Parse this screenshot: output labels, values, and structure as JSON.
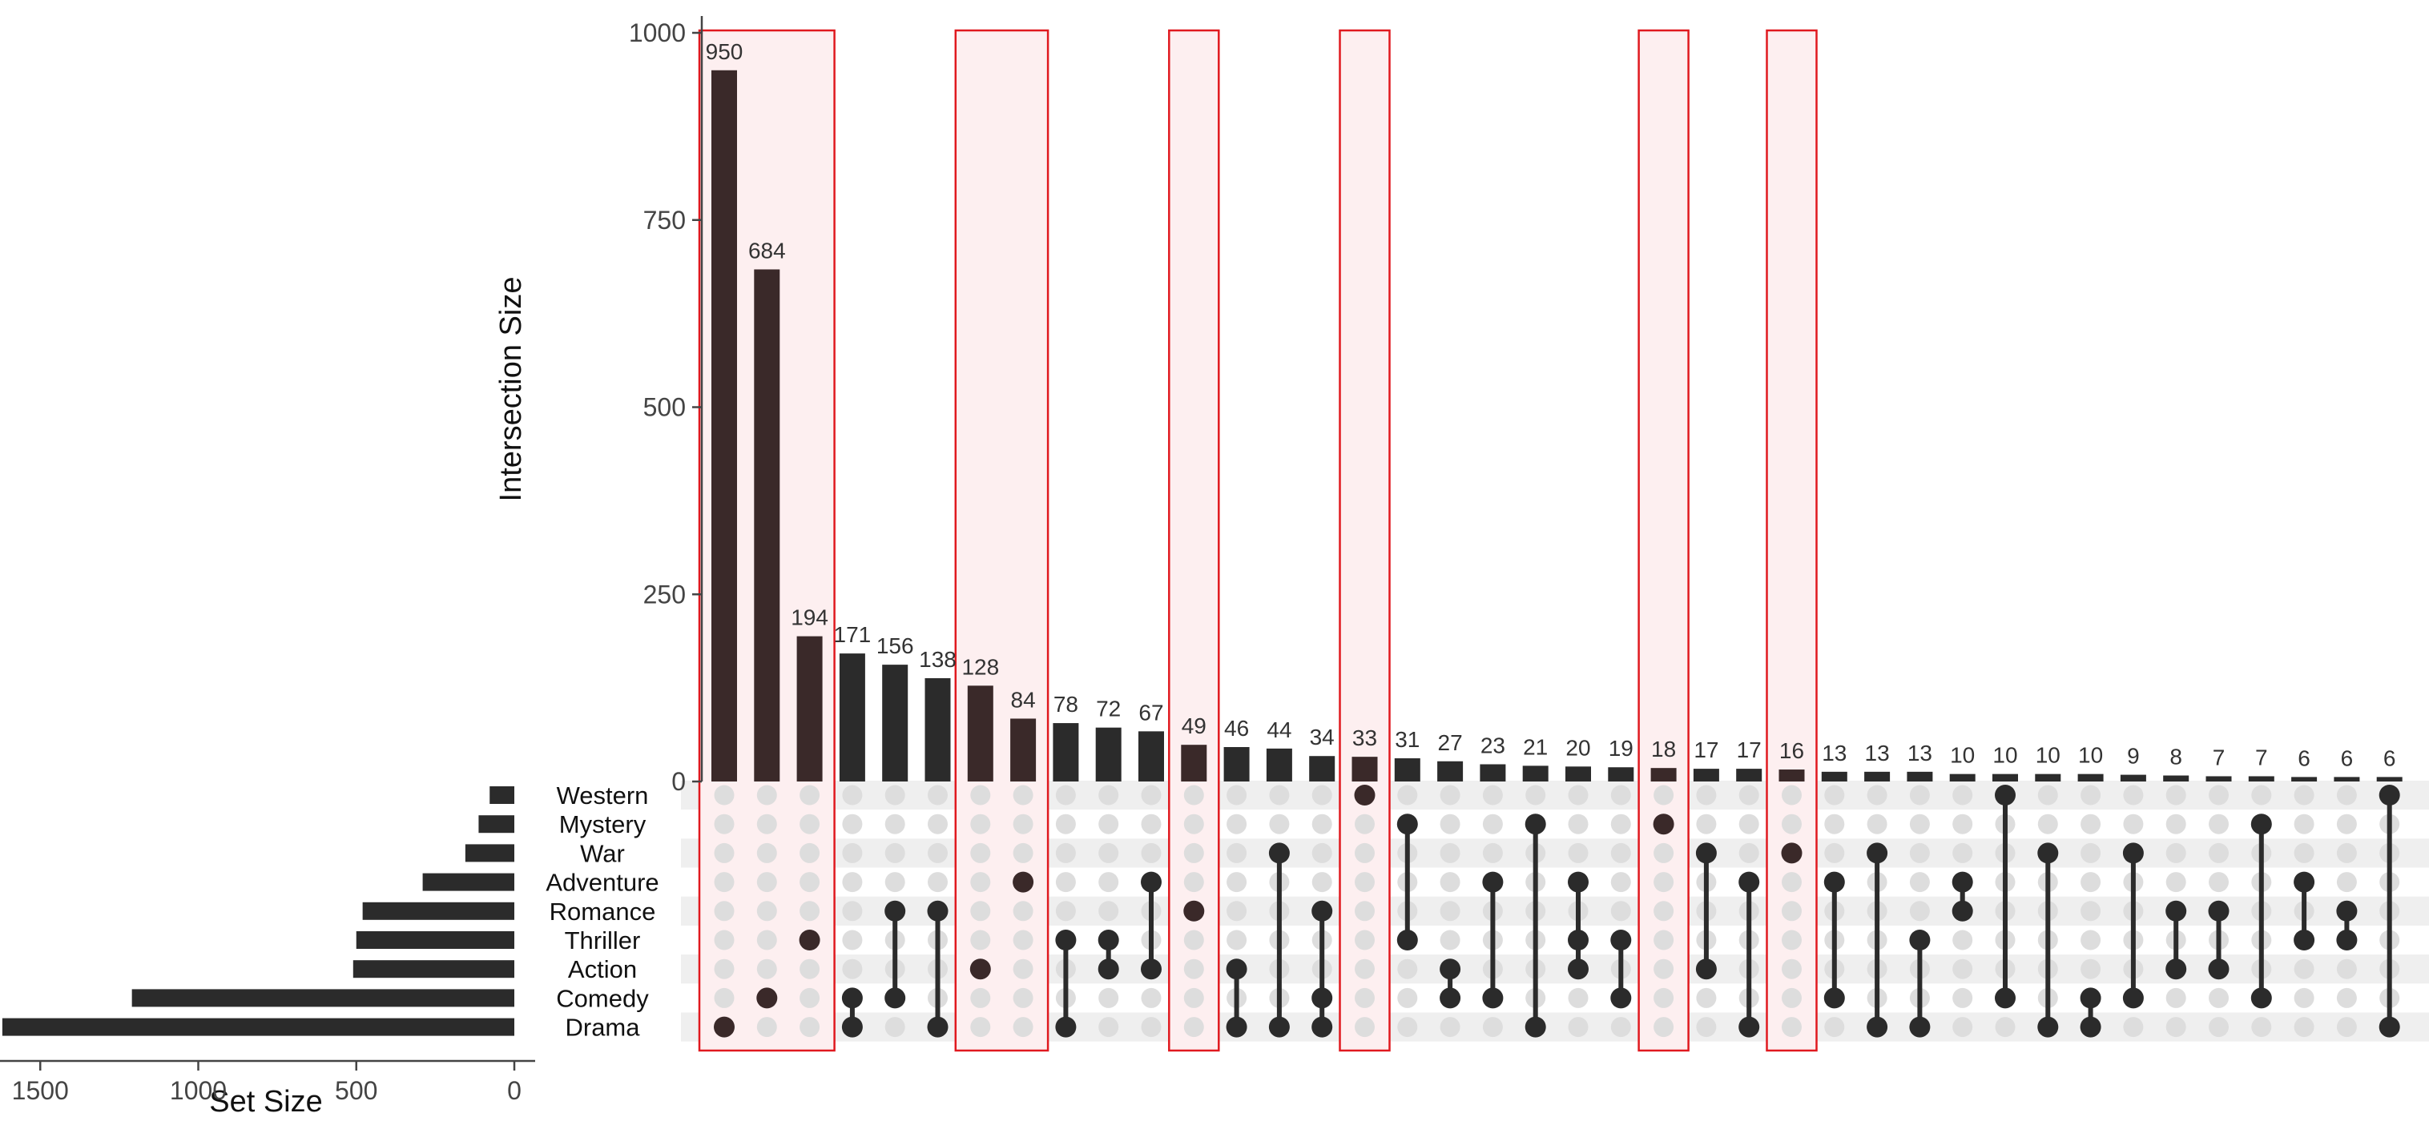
{
  "chart_data": {
    "type": "upset",
    "ylabel": "Intersection Size",
    "set_size_label": "Set Size",
    "ylim": [
      0,
      1000
    ],
    "yticks": [
      0,
      250,
      500,
      750,
      1000
    ],
    "set_size_lim": [
      0,
      1650
    ],
    "set_size_ticks": [
      1500,
      1000,
      500,
      0
    ],
    "sets": [
      "Western",
      "Mystery",
      "War",
      "Adventure",
      "Romance",
      "Thriller",
      "Action",
      "Comedy",
      "Drama"
    ],
    "set_sizes": [
      78,
      113,
      155,
      290,
      480,
      500,
      510,
      1210,
      1620
    ],
    "intersections": [
      {
        "sets": [
          "Drama"
        ],
        "size": 950
      },
      {
        "sets": [
          "Comedy"
        ],
        "size": 684
      },
      {
        "sets": [
          "Thriller"
        ],
        "size": 194
      },
      {
        "sets": [
          "Comedy",
          "Drama"
        ],
        "size": 171
      },
      {
        "sets": [
          "Romance",
          "Comedy"
        ],
        "size": 156
      },
      {
        "sets": [
          "Romance",
          "Drama"
        ],
        "size": 138
      },
      {
        "sets": [
          "Action"
        ],
        "size": 128
      },
      {
        "sets": [
          "Adventure"
        ],
        "size": 84
      },
      {
        "sets": [
          "Thriller",
          "Drama"
        ],
        "size": 78
      },
      {
        "sets": [
          "Thriller",
          "Action"
        ],
        "size": 72
      },
      {
        "sets": [
          "Adventure",
          "Action"
        ],
        "size": 67
      },
      {
        "sets": [
          "Romance"
        ],
        "size": 49
      },
      {
        "sets": [
          "Action",
          "Drama"
        ],
        "size": 46
      },
      {
        "sets": [
          "War",
          "Drama"
        ],
        "size": 44
      },
      {
        "sets": [
          "Romance",
          "Comedy",
          "Drama"
        ],
        "size": 34
      },
      {
        "sets": [
          "Western"
        ],
        "size": 33
      },
      {
        "sets": [
          "Mystery",
          "Thriller"
        ],
        "size": 31
      },
      {
        "sets": [
          "Action",
          "Comedy"
        ],
        "size": 27
      },
      {
        "sets": [
          "Adventure",
          "Comedy"
        ],
        "size": 23
      },
      {
        "sets": [
          "Mystery",
          "Drama"
        ],
        "size": 21
      },
      {
        "sets": [
          "Adventure",
          "Thriller",
          "Action"
        ],
        "size": 20
      },
      {
        "sets": [
          "Thriller",
          "Comedy"
        ],
        "size": 19
      },
      {
        "sets": [
          "Mystery"
        ],
        "size": 18
      },
      {
        "sets": [
          "War",
          "Action"
        ],
        "size": 17
      },
      {
        "sets": [
          "Adventure",
          "Drama"
        ],
        "size": 17
      },
      {
        "sets": [
          "War"
        ],
        "size": 16
      },
      {
        "sets": [
          "Adventure",
          "Comedy"
        ],
        "size": 13
      },
      {
        "sets": [
          "War",
          "Drama"
        ],
        "size": 13
      },
      {
        "sets": [
          "Thriller",
          "Drama"
        ],
        "size": 13
      },
      {
        "sets": [
          "Adventure",
          "Romance"
        ],
        "size": 10
      },
      {
        "sets": [
          "Western",
          "Comedy"
        ],
        "size": 10
      },
      {
        "sets": [
          "War",
          "Drama"
        ],
        "size": 10
      },
      {
        "sets": [
          "Comedy",
          "Drama"
        ],
        "size": 10
      },
      {
        "sets": [
          "War",
          "Comedy"
        ],
        "size": 9
      },
      {
        "sets": [
          "Romance",
          "Action"
        ],
        "size": 8
      },
      {
        "sets": [
          "Romance",
          "Action"
        ],
        "size": 7
      },
      {
        "sets": [
          "Mystery",
          "Comedy"
        ],
        "size": 7
      },
      {
        "sets": [
          "Adventure",
          "Thriller"
        ],
        "size": 6
      },
      {
        "sets": [
          "Romance",
          "Thriller"
        ],
        "size": 6
      },
      {
        "sets": [
          "Western",
          "Drama"
        ],
        "size": 6
      }
    ],
    "highlighted_groups": [
      [
        0,
        2
      ],
      [
        6,
        7
      ],
      [
        11,
        11
      ],
      [
        15,
        15
      ],
      [
        22,
        22
      ],
      [
        25,
        25
      ]
    ],
    "colors": {
      "bar": "#2b2b2b",
      "highlight_bar": "#3a2929",
      "highlight_border": "#e0191f",
      "highlight_fill": "#fdeff0",
      "dot_inactive": "#dddddd",
      "stripe": "#efefef",
      "axis": "#444444"
    }
  }
}
